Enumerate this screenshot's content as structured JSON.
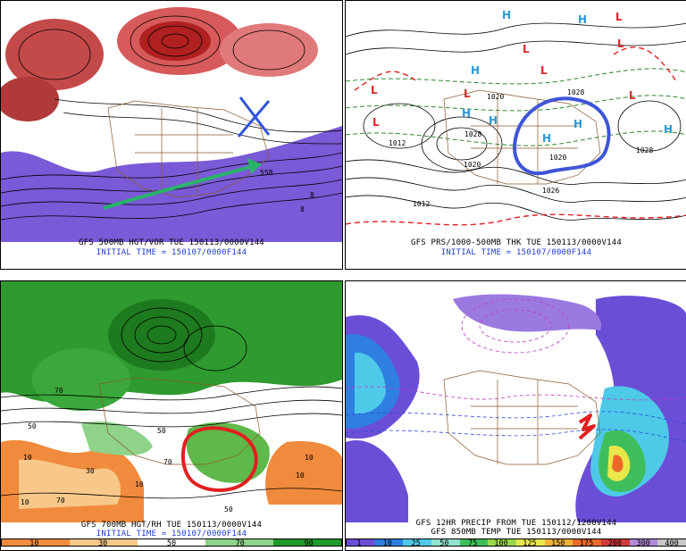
{
  "panels": [
    {
      "title": "GFS 500MB HGT/VOR TUE 150113/0000V144",
      "subtitle": "INITIAL TIME = 150107/0000F144",
      "contour_labels": [
        "558",
        "8",
        "8"
      ],
      "annotations": [
        "blue-x-mark",
        "green-arrow"
      ]
    },
    {
      "title": "GFS PRS/1000-500MB THK TUE 150113/0000V144",
      "subtitle": "INITIAL TIME = 150107/0000F144",
      "pressure_labels": [
        "1028",
        "1020",
        "1020",
        "1012",
        "1028",
        "1028",
        "1026",
        "1012",
        "1020"
      ],
      "highs": [
        "H",
        "H",
        "H",
        "H",
        "H",
        "H",
        "H",
        "H"
      ],
      "lows": [
        "L",
        "L",
        "L",
        "L",
        "L",
        "L",
        "L",
        "L"
      ],
      "annotations": [
        "blue-circle-outline"
      ]
    },
    {
      "title": "GFS 700MB HGT/RH TUE 150113/0000V144",
      "subtitle": "INITIAL TIME = 150107/0000F144",
      "field_labels": [
        "10",
        "10",
        "50",
        "70",
        "30",
        "10",
        "50",
        "70",
        "10",
        "10",
        "70",
        "50"
      ],
      "scale": [
        "10",
        "30",
        "50",
        "70",
        "90"
      ],
      "scale_colors": [
        "#f08a3c",
        "#f7c88a",
        "#ffffff",
        "#8fd38a",
        "#1f9a2a"
      ],
      "annotations": [
        "red-circle-outline"
      ]
    },
    {
      "title": "GFS 12HR PRECIP FROM TUE 150112/1200V144",
      "title2": "GFS 850MB TEMP TUE 150113/0000V144",
      "scale": [
        "1",
        "10",
        "25",
        "50",
        "75",
        "100",
        "125",
        "150",
        "175",
        "200",
        "300",
        "400"
      ],
      "scale_colors": [
        "#6a4fd6",
        "#2e7fe0",
        "#4ec9e8",
        "#8fe3d0",
        "#3fbf5c",
        "#9ad94a",
        "#e8e84a",
        "#f2b23a",
        "#ea6a2a",
        "#d23a3a",
        "#b08ad8",
        "#c8c8c8"
      ],
      "annotations": [
        "red-squiggle"
      ]
    }
  ]
}
